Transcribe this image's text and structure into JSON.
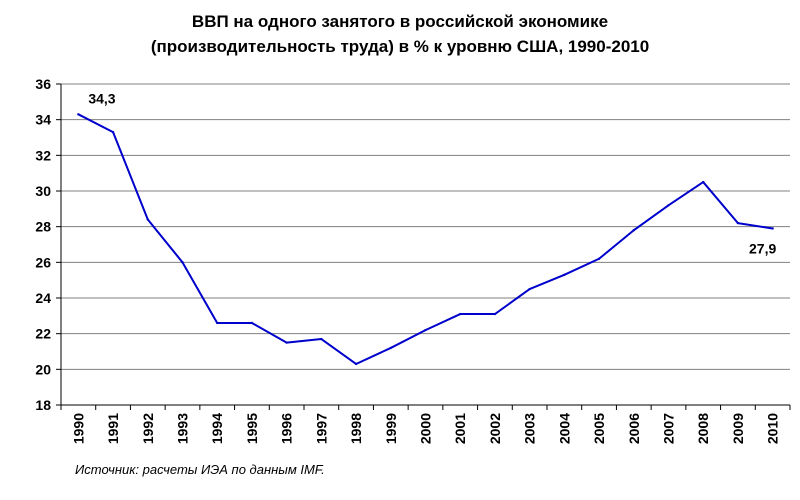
{
  "title_line1": "ВВП на одного занятого в российской экономике",
  "title_line2": "(производительность труда) в % к уровню США, 1990-2010",
  "source": "Источник: расчеты ИЭА по данным IMF.",
  "chart_data": {
    "type": "line",
    "title": "ВВП на одного занятого в российской экономике (производительность труда) в % к уровню США, 1990-2010",
    "xlabel": "",
    "ylabel": "",
    "categories": [
      "1990",
      "1991",
      "1992",
      "1993",
      "1994",
      "1995",
      "1996",
      "1997",
      "1998",
      "1999",
      "2000",
      "2001",
      "2002",
      "2003",
      "2004",
      "2005",
      "2006",
      "2007",
      "2008",
      "2009",
      "2010"
    ],
    "series": [
      {
        "values": [
          34.3,
          33.3,
          28.4,
          26.0,
          22.6,
          22.6,
          21.5,
          21.7,
          20.3,
          21.2,
          22.2,
          23.1,
          23.1,
          24.5,
          25.3,
          26.2,
          27.8,
          29.2,
          30.5,
          28.2,
          27.9
        ],
        "color": "#0000cc"
      }
    ],
    "ylim": [
      18,
      36
    ],
    "yticks": [
      18,
      20,
      22,
      24,
      26,
      28,
      30,
      32,
      34,
      36
    ],
    "grid": true,
    "legend": "none",
    "annotations": [
      {
        "category": "1990",
        "text": "34,3"
      },
      {
        "category": "2010",
        "text": "27,9"
      }
    ]
  }
}
